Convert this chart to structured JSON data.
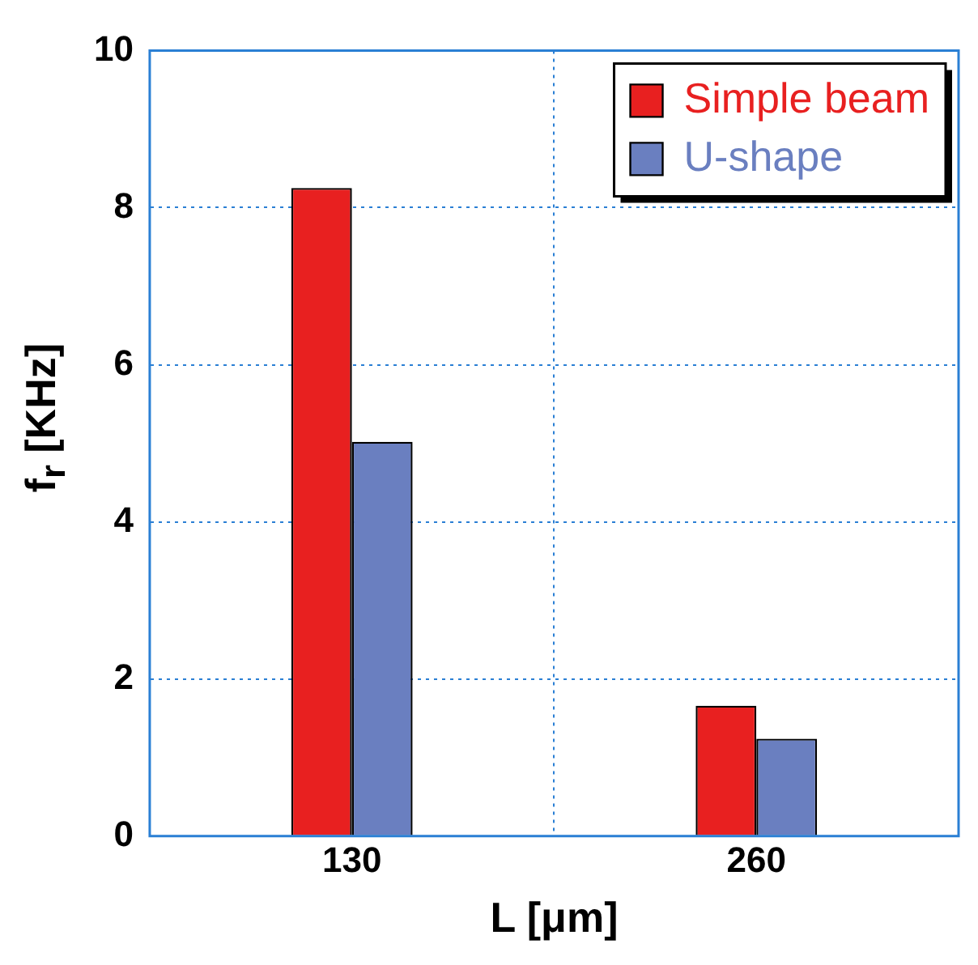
{
  "chart_data": {
    "type": "bar",
    "xlabel": "L [μm]",
    "ylabel": "f$_{r}$ [KHz]",
    "categories": [
      "130",
      "260"
    ],
    "series": [
      {
        "name": "Simple beam",
        "color": "#e82020",
        "values": [
          8.25,
          1.66
        ]
      },
      {
        "name": "U-shape",
        "color": "#6a7fc0",
        "values": [
          5.02,
          1.24
        ]
      }
    ],
    "ylim": [
      0,
      10
    ],
    "yticks": [
      0,
      2,
      4,
      6,
      8,
      10
    ],
    "grid": true,
    "legend": "top right"
  }
}
